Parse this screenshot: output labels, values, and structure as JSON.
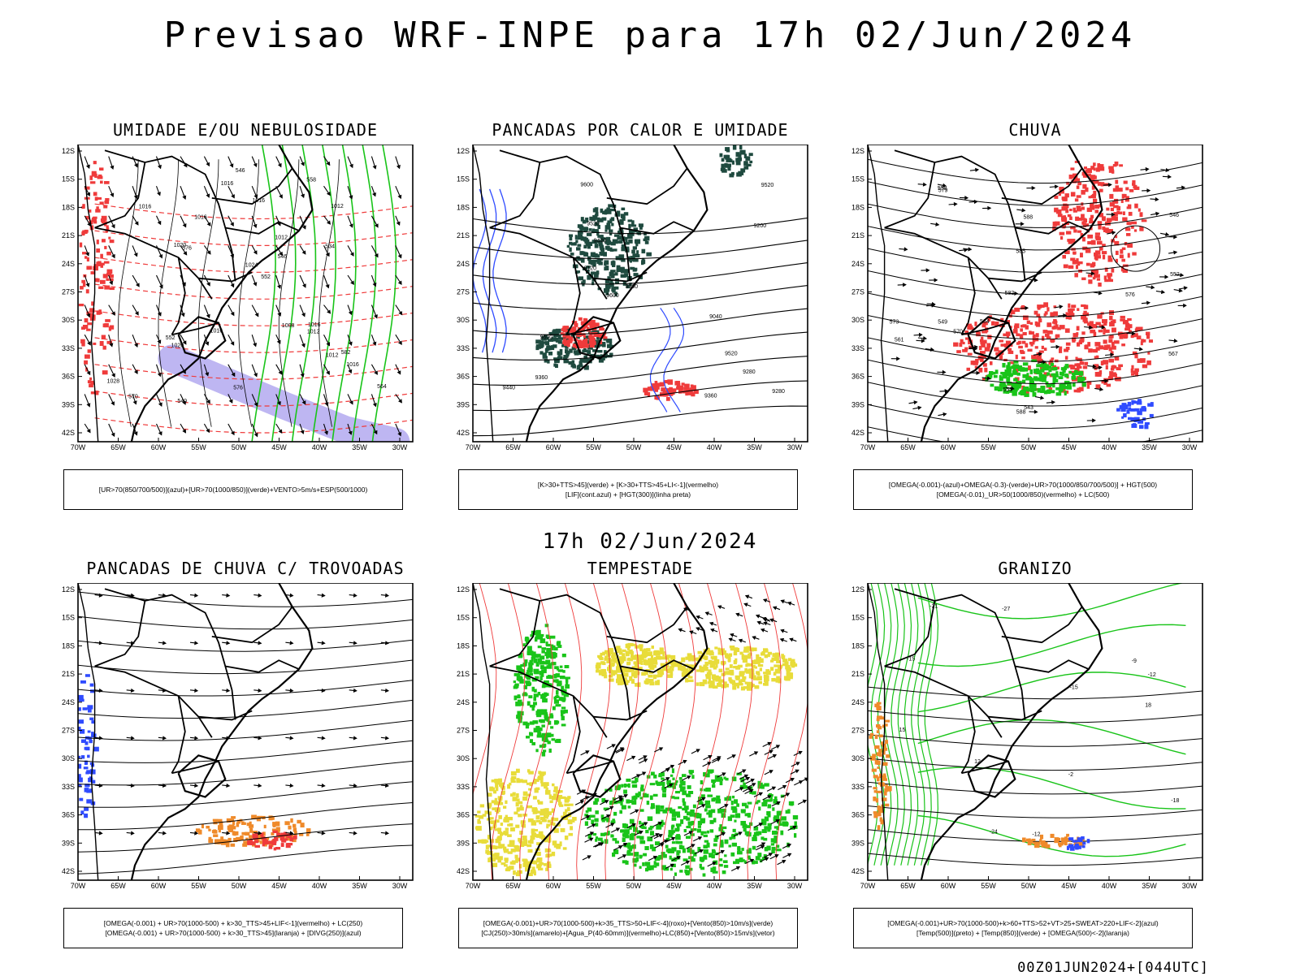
{
  "title": "Previsao WRF-INPE  para 17h 02/Jun/2024",
  "mid_title": "17h 02/Jun/2024",
  "footer": "00Z01JUN2024+[044UTC]",
  "axes": {
    "lat_labels": [
      "12S",
      "15S",
      "18S",
      "21S",
      "24S",
      "27S",
      "30S",
      "33S",
      "36S",
      "39S",
      "42S"
    ],
    "lon_labels": [
      "70W",
      "65W",
      "60W",
      "55W",
      "50W",
      "45W",
      "40W",
      "35W",
      "30W"
    ]
  },
  "colors": {
    "blue": "#2f4bff",
    "green": "#19c419",
    "red": "#ef3b3b",
    "orange": "#ef8a2a",
    "darkgreen": "#1f4a3f",
    "yellow": "#e8dc3a",
    "lavender": "#b3a9f0"
  },
  "panels": [
    {
      "id": "umidade",
      "title": "UMIDADE E/OU NEBULOSIDADE",
      "legend": [
        "[UR>70(850/700/500)](azul)+[UR>70(1000/850)](verde)+VENTO>5m/s+ESP(500/1000)"
      ],
      "contour_labels": [
        "1012",
        "1016",
        "1016",
        "1020",
        "1016",
        "1012",
        "1016",
        "1020",
        "1024",
        "1028",
        "1012",
        "1008",
        "1016",
        "1012",
        "1016",
        "1016",
        "564",
        "570",
        "576",
        "576",
        "582",
        "546",
        "552",
        "540",
        "534",
        "546",
        "552",
        "558"
      ]
    },
    {
      "id": "pancadas-calor",
      "title": "PANCADAS POR CALOR E UMIDADE",
      "legend": [
        "[K>30+TTS>45](verde) + [K>30+TTS>45+LI<-1](vermelho)",
        "[LIF](cont.azul) + [HGT(300)](linha preta)"
      ],
      "contour_labels": [
        "9600",
        "9600",
        "9600",
        "9520",
        "9520",
        "9520",
        "9440",
        "9440",
        "9360",
        "9360",
        "9280",
        "9200",
        "9120",
        "9040",
        "8960",
        "9280"
      ]
    },
    {
      "id": "chuva",
      "title": "CHUVA",
      "legend": [
        "[OMEGA(-0.001)-(azul)+OMEGA(-0.3)-(verde)+UR>70(1000/850/700/500)] + HGT(500)",
        "[OMEGA(-0.01)_UR>50(1000/850)(vermelho) + LC(500)"
      ],
      "contour_labels": [
        "588",
        "585",
        "582",
        "579",
        "576",
        "573",
        "570",
        "567",
        "564",
        "561",
        "558",
        "555",
        "552",
        "549",
        "546",
        "543",
        "588"
      ]
    },
    {
      "id": "pancadas-trovoadas",
      "title": "PANCADAS DE CHUVA C/ TROVOADAS",
      "legend": [
        "[OMEGA(-0.001) + UR>70(1000-500) + k>30_TTS>45+LIF<-1](vermelho) + LC(250)",
        "[OMEGA(-0.001) + UR>70(1000-500) + k>30_TTS>45](laranja) + [DIVG(250)](azul)"
      ],
      "contour_labels": []
    },
    {
      "id": "tempestade",
      "title": "TEMPESTADE",
      "legend": [
        "[OMEGA(-0.001)+UR>70(1000-500)+k>35_TTS>50+LIF<-4](roxo)+[Vento(850)>10m/s](verde)",
        "[CJ(250)>30m/s](amarelo)+[Agua_P(40-60mm)](vermelho)+LC(850)+[Vento(850)>15m/s](vetor)"
      ],
      "contour_labels": []
    },
    {
      "id": "granizo",
      "title": "GRANIZO",
      "legend": [
        "[OMEGA(-0.001)+UR>70(1000-500)+k>60+TTS>52+VT>25+SWEAT>220+LIF<-2](azul)",
        "[Temp(500)](preto) + [Temp(850)](verde) + [OMEGA(500)<-2](laranja)"
      ],
      "contour_labels": [
        "-9",
        "-12",
        "-12",
        "-15",
        "-15",
        "-18",
        "-21",
        "-24",
        "-27",
        "12",
        "15",
        "18",
        "-2"
      ]
    }
  ]
}
